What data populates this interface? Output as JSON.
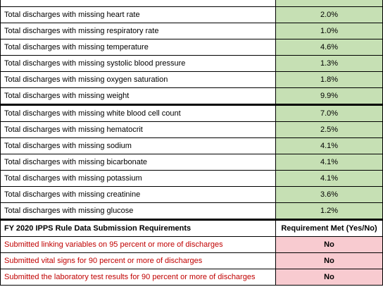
{
  "missing_rows_group1": [
    {
      "label": "Total discharges with missing heart rate",
      "value": "2.0%"
    },
    {
      "label": "Total discharges with missing respiratory rate",
      "value": "1.0%"
    },
    {
      "label": "Total discharges with missing temperature",
      "value": "4.6%"
    },
    {
      "label": "Total discharges with missing systolic blood pressure",
      "value": "1.3%"
    },
    {
      "label": "Total discharges with missing oxygen saturation",
      "value": "1.8%"
    },
    {
      "label": "Total discharges with missing weight",
      "value": "9.9%"
    }
  ],
  "missing_rows_group2": [
    {
      "label": "Total discharges with missing white blood cell count",
      "value": "7.0%"
    },
    {
      "label": "Total discharges with missing hematocrit",
      "value": "2.5%"
    },
    {
      "label": "Total discharges with missing sodium",
      "value": "4.1%"
    },
    {
      "label": "Total discharges with missing bicarbonate",
      "value": "4.1%"
    },
    {
      "label": "Total discharges with missing potassium",
      "value": "4.1%"
    },
    {
      "label": "Total discharges with missing creatinine",
      "value": "3.6%"
    },
    {
      "label": "Total discharges with missing glucose",
      "value": "1.2%"
    }
  ],
  "requirements": {
    "header_left": "FY 2020 IPPS Rule Data Submission Requirements",
    "header_right": "Requirement Met (Yes/No)",
    "rows": [
      {
        "label": "Submitted linking variables on 95 percent or more of discharges",
        "value": "No"
      },
      {
        "label": "Submitted vital signs for 90 percent or more of discharges",
        "value": "No"
      },
      {
        "label": "Submitted the laboratory test results for 90 percent or more of discharges",
        "value": "No"
      }
    ]
  },
  "colors": {
    "value_fill": "#c6e0b4",
    "no_fill": "#f8cbd0",
    "requirement_text": "#c00000"
  }
}
